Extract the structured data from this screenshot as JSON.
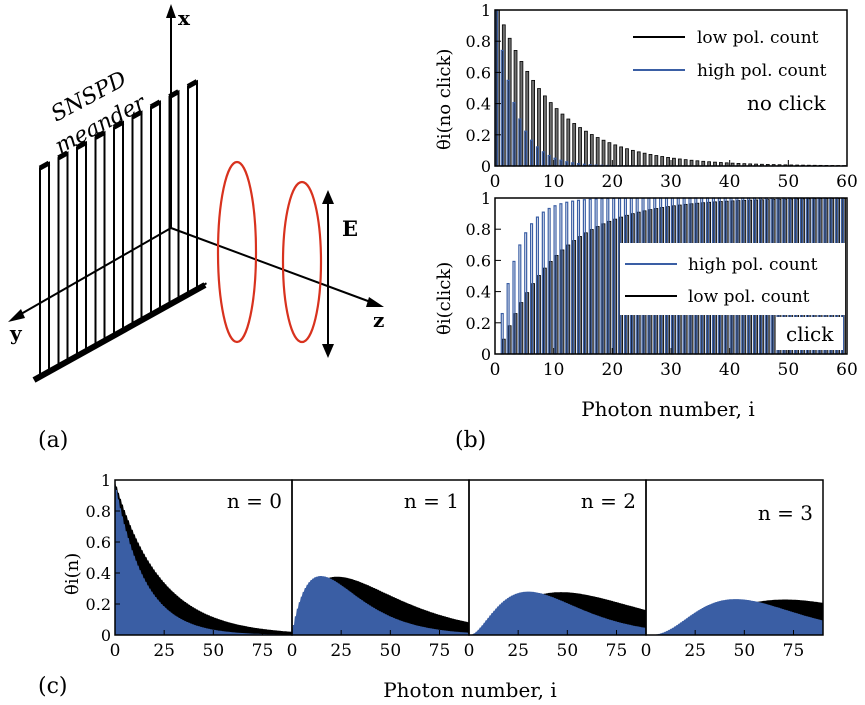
{
  "panel_labels": {
    "a": "(a)",
    "b": "(b)",
    "c": "(c)"
  },
  "diagram": {
    "detector_label_line1": "SNSPD",
    "detector_label_line2": "meander",
    "axis_x": "x",
    "axis_y": "y",
    "axis_z": "z",
    "field_label": "E",
    "colors": {
      "wave": "#d8321e",
      "structure": "#000000"
    }
  },
  "colors": {
    "blue": "#3a5ea4",
    "gray": "#6f6f6f",
    "black": "#000000"
  },
  "chart_data": [
    {
      "id": "b-top",
      "type": "bar",
      "ylabel": "θi(no click)",
      "xlabel": "",
      "annotation": "no click",
      "xlim": [
        0,
        60
      ],
      "ylim": [
        0,
        1
      ],
      "xticks": [
        0,
        10,
        20,
        30,
        40,
        50,
        60
      ],
      "yticks": [
        0,
        0.2,
        0.4,
        0.6,
        0.8,
        1
      ],
      "ytick_labels": [
        "0",
        "0.2",
        "0.4",
        "0.6",
        "0.8",
        "1"
      ],
      "legend_position": "top-right",
      "series": [
        {
          "name": "low pol. count",
          "model": "exp",
          "rate": 0.1,
          "values_note": "θi = 0.905^i for i = 0..60"
        },
        {
          "name": "high pol. count",
          "model": "exp",
          "rate": 0.3,
          "values_note": "θi = 0.74^i for i = 0..60"
        }
      ],
      "legend_order": [
        "low pol. count",
        "high pol. count"
      ]
    },
    {
      "id": "b-bottom",
      "type": "bar",
      "ylabel": "θi(click)",
      "xlabel": "Photon number, i",
      "annotation": "click",
      "xlim": [
        0,
        60
      ],
      "ylim": [
        0,
        1
      ],
      "xticks": [
        0,
        10,
        20,
        30,
        40,
        50,
        60
      ],
      "yticks": [
        0,
        0.2,
        0.4,
        0.6,
        0.8,
        1
      ],
      "ytick_labels": [
        "0",
        "0.2",
        "0.4",
        "0.6",
        "0.8",
        "1"
      ],
      "legend_position": "bottom-right",
      "series": [
        {
          "name": "high pol. count",
          "model": "one-minus-exp",
          "rate": 0.3
        },
        {
          "name": "low pol. count",
          "model": "one-minus-exp",
          "rate": 0.1
        }
      ],
      "legend_order": [
        "high pol. count",
        "low pol. count"
      ]
    },
    {
      "id": "c",
      "type": "area",
      "ylabel": "θi(n)",
      "xlabel": "Photon number, i",
      "ylim": [
        0,
        1
      ],
      "xlim": [
        0,
        90
      ],
      "xticks": [
        0,
        25,
        50,
        75
      ],
      "yticks": [
        0,
        0.2,
        0.4,
        0.6,
        0.8,
        1
      ],
      "ytick_labels": [
        "0",
        "0.2",
        "0.4",
        "0.6",
        "0.8",
        "1"
      ],
      "rates": {
        "blue": 0.067,
        "black": 0.043
      },
      "panels": [
        {
          "label": "n = 0",
          "n": 0
        },
        {
          "label": "n = 1",
          "n": 1
        },
        {
          "label": "n = 2",
          "n": 2
        },
        {
          "label": "n = 3",
          "n": 3
        }
      ]
    }
  ]
}
